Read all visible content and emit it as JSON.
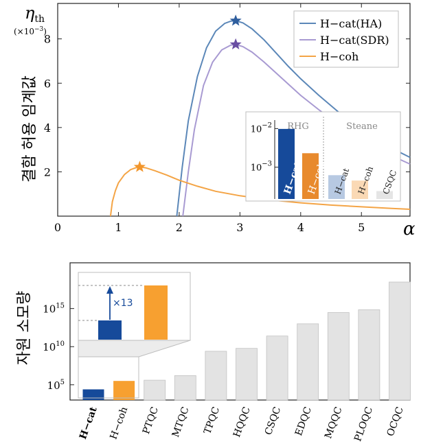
{
  "chart_data": [
    {
      "type": "line",
      "ylabel": "결함 허용 임계값",
      "ysymbol": "η",
      "ysymbol_sub": "th",
      "yunit_prefix": "(×10",
      "yunit_exp": "−3",
      "yunit_suffix": ")",
      "xlabel": "α",
      "xlim": [
        0,
        5.8
      ],
      "ylim": [
        0,
        9.6
      ],
      "xticks": [
        "0",
        "1",
        "2",
        "3",
        "4",
        "5"
      ],
      "yticks": [
        "2",
        "4",
        "6",
        "8"
      ],
      "legend_position": "top-right",
      "series": [
        {
          "name": "H−cat(HA)",
          "color": "#5b87b8",
          "x": [
            1.96,
            2.05,
            2.15,
            2.3,
            2.45,
            2.6,
            2.75,
            2.85,
            2.93,
            3.05,
            3.2,
            3.4,
            3.6,
            3.8,
            4.0,
            4.3,
            4.6,
            5.0,
            5.4,
            5.8
          ],
          "y": [
            0.0,
            2.2,
            4.3,
            6.3,
            7.6,
            8.35,
            8.7,
            8.8,
            8.82,
            8.72,
            8.45,
            7.95,
            7.35,
            6.75,
            6.2,
            5.45,
            4.75,
            3.85,
            3.2,
            2.65
          ],
          "peak": [
            2.93,
            8.82
          ]
        },
        {
          "name": "H−cat(SDR)",
          "color": "#a89ad2",
          "x": [
            2.06,
            2.15,
            2.25,
            2.4,
            2.55,
            2.7,
            2.85,
            2.93,
            3.05,
            3.2,
            3.4,
            3.6,
            3.8,
            4.0,
            4.3,
            4.6,
            5.0,
            5.4,
            5.8
          ],
          "y": [
            0.0,
            2.0,
            3.9,
            5.9,
            6.95,
            7.5,
            7.72,
            7.75,
            7.65,
            7.4,
            6.95,
            6.45,
            5.95,
            5.45,
            4.8,
            4.2,
            3.45,
            2.85,
            2.35
          ],
          "peak": [
            2.93,
            7.75
          ]
        },
        {
          "name": "H−coh",
          "color": "#f4a445",
          "x": [
            0.87,
            0.9,
            0.95,
            1.0,
            1.1,
            1.2,
            1.3,
            1.35,
            1.45,
            1.6,
            1.8,
            2.0,
            2.3,
            2.6,
            3.0,
            3.5,
            4.0,
            4.5,
            5.0,
            5.5,
            5.8
          ],
          "y": [
            0.0,
            0.65,
            1.15,
            1.5,
            1.88,
            2.1,
            2.2,
            2.22,
            2.18,
            2.05,
            1.85,
            1.62,
            1.35,
            1.12,
            0.92,
            0.73,
            0.6,
            0.5,
            0.42,
            0.35,
            0.31
          ],
          "peak": [
            1.35,
            2.22
          ]
        }
      ]
    },
    {
      "type": "bar",
      "inset": true,
      "groups": [
        {
          "label": "RHG",
          "categories": [
            "H−cat",
            "H−coh"
          ]
        },
        {
          "label": "Steane",
          "categories": [
            "H−cat",
            "H−coh",
            "CSQC"
          ]
        }
      ],
      "categories": [
        "H−cat",
        "H−coh",
        "H−cat",
        "H−coh",
        "CSQC"
      ],
      "values": [
        0.0098,
        0.0023,
        0.00062,
        0.00045,
        0.00024
      ],
      "colors": [
        "#164a9a",
        "#e88a2d",
        "#b7c9e2",
        "#fad9b5",
        "#e5e5e5"
      ],
      "yscale": "log",
      "ylim": [
        0.00015,
        0.025
      ],
      "yticks": [
        {
          "value": 0.01,
          "base": "10",
          "exp": "−2"
        },
        {
          "value": 0.001,
          "base": "10",
          "exp": "−3"
        }
      ]
    },
    {
      "type": "bar",
      "ylabel": "자원 소모량",
      "yscale": "log",
      "ylim": [
        1000,
        1e+21
      ],
      "yticks": [
        {
          "value": 100000,
          "base": "10",
          "exp": "5"
        },
        {
          "value": 10000000000.0,
          "base": "10",
          "exp": "10"
        },
        {
          "value": 1000000000000000.0,
          "base": "10",
          "exp": "15"
        }
      ],
      "categories": [
        "H−cat",
        "H−coh",
        "PTQC",
        "MTQC",
        "TPQC",
        "HQQC",
        "CSQC",
        "EDQC",
        "MQQC",
        "PLOQC",
        "OCQC"
      ],
      "values": [
        25000.0,
        320000.0,
        400000.0,
        1600000.0,
        2500000000.0,
        6000000000.0,
        250000000000.0,
        10000000000000.0,
        300000000000000.0,
        700000000000000.0,
        3e+18
      ],
      "colors": [
        "#164a9a",
        "#f7a030",
        "#e3e3e3",
        "#e3e3e3",
        "#e3e3e3",
        "#e3e3e3",
        "#e3e3e3",
        "#e3e3e3",
        "#e3e3e3",
        "#e3e3e3",
        "#e3e3e3"
      ],
      "zoom_inset": {
        "annotation": "×13",
        "ratio": 13
      }
    }
  ]
}
